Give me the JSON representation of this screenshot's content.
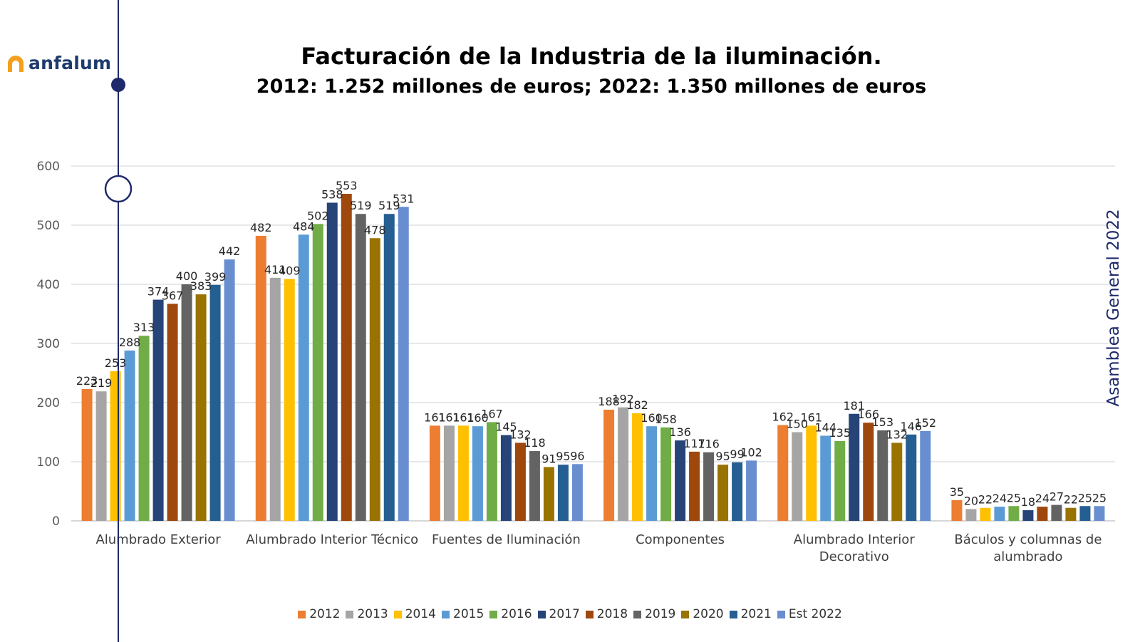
{
  "logo": {
    "text": "anfalum"
  },
  "title": "Facturación  de la Industria de la iluminación.",
  "subtitle": "2012: 1.252 millones de euros; 2022: 1.350 millones de euros",
  "side_label": "Asamblea General 2022",
  "colors": {
    "timeline": "#1f2a6b",
    "grid": "#d9d9d9",
    "logo_orange": "#f4a01e"
  },
  "chart_data": {
    "type": "bar",
    "title": "Facturación  de la Industria de la iluminación.",
    "subtitle": "2012: 1.252 millones de euros; 2022: 1.350 millones de euros",
    "xlabel": "",
    "ylabel": "",
    "ylim": [
      0,
      600
    ],
    "yticks": [
      0,
      100,
      200,
      300,
      400,
      500,
      600
    ],
    "grid": true,
    "legend_position": "bottom",
    "categories": [
      [
        "Alumbrado Exterior"
      ],
      [
        "Alumbrado Interior Técnico"
      ],
      [
        "Fuentes de Iluminación"
      ],
      [
        "Componentes"
      ],
      [
        "Alumbrado Interior",
        "Decorativo"
      ],
      [
        "Báculos y columnas de",
        "alumbrado"
      ]
    ],
    "series": [
      {
        "name": "2012",
        "color": "#ED7D31",
        "values": [
          223,
          482,
          161,
          188,
          162,
          35
        ]
      },
      {
        "name": "2013",
        "color": "#A5A5A5",
        "values": [
          219,
          411,
          161,
          192,
          150,
          20
        ]
      },
      {
        "name": "2014",
        "color": "#FFC000",
        "values": [
          253,
          409,
          161,
          182,
          161,
          22
        ]
      },
      {
        "name": "2015",
        "color": "#5B9BD5",
        "values": [
          288,
          484,
          160,
          160,
          144,
          24
        ]
      },
      {
        "name": "2016",
        "color": "#70AD47",
        "values": [
          313,
          502,
          167,
          158,
          135,
          25
        ]
      },
      {
        "name": "2017",
        "color": "#264478",
        "values": [
          374,
          538,
          145,
          136,
          181,
          18
        ]
      },
      {
        "name": "2018",
        "color": "#9E480E",
        "values": [
          367,
          553,
          132,
          117,
          166,
          24
        ]
      },
      {
        "name": "2019",
        "color": "#636363",
        "values": [
          400,
          519,
          118,
          116,
          153,
          27
        ]
      },
      {
        "name": "2020",
        "color": "#997300",
        "values": [
          383,
          478,
          91,
          95,
          132,
          22
        ]
      },
      {
        "name": "2021",
        "color": "#255E91",
        "values": [
          399,
          519,
          95,
          99,
          146,
          25
        ]
      },
      {
        "name": "Est 2022",
        "color": "#698ED0",
        "values": [
          442,
          531,
          96,
          102,
          152,
          25
        ]
      }
    ]
  }
}
